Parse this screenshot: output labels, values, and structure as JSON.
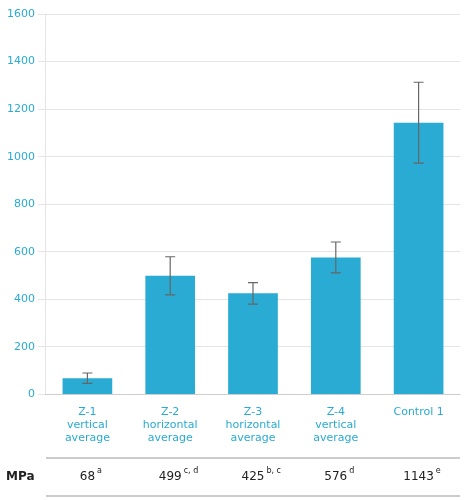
{
  "chart_data": {
    "type": "bar",
    "categories": [
      "Z-1\nvertical\naverage",
      "Z-2\nhorizontal\naverage",
      "Z-3\nhorizontal\naverage",
      "Z-4\nvertical\naverage",
      "Control 1"
    ],
    "values": [
      68,
      499,
      425,
      576,
      1143
    ],
    "errors": [
      22,
      80,
      45,
      65,
      170
    ],
    "color": "#29ABD4",
    "ylim": [
      0,
      1600
    ],
    "yticks": [
      0,
      200,
      400,
      600,
      800,
      1000,
      1200,
      1400,
      1600
    ],
    "grid": true,
    "table": {
      "label": "MPa",
      "values": [
        68,
        499,
        425,
        576,
        1143
      ],
      "superscripts": [
        "a",
        "c, d",
        "b, c",
        "d",
        "e"
      ]
    }
  }
}
